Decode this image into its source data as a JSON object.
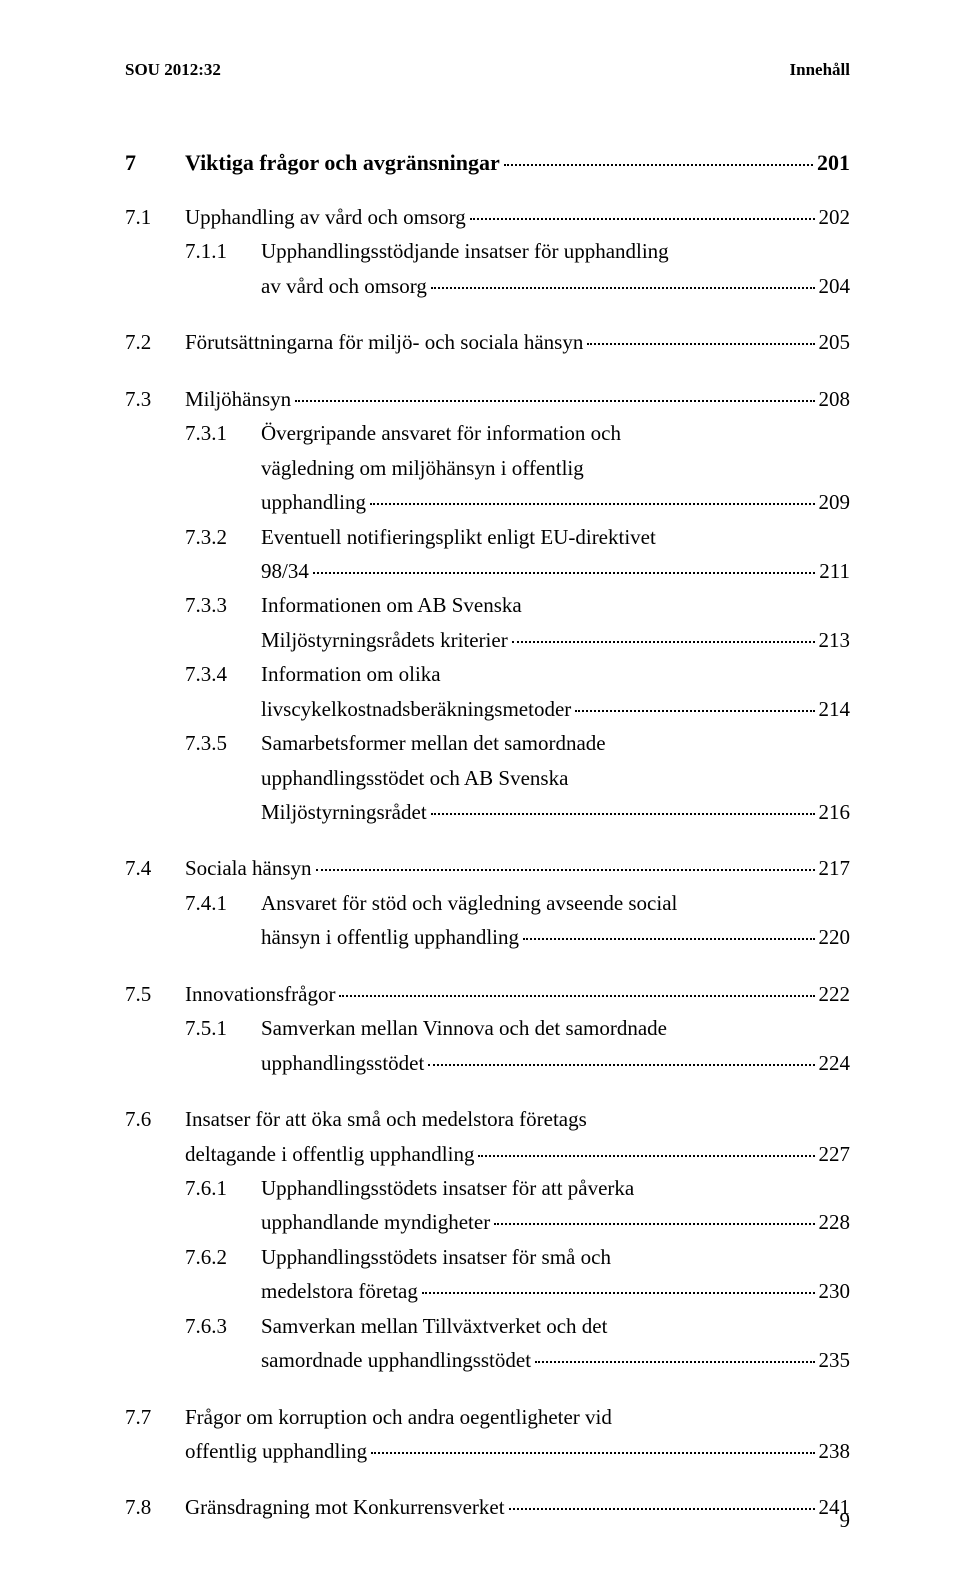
{
  "header": {
    "left": "SOU 2012:32",
    "right": "Innehåll"
  },
  "chapter": {
    "num": "7",
    "title": "Viktiga frågor och avgränsningar",
    "page": "201"
  },
  "sections": [
    {
      "num": "7.1",
      "title": "Upphandling av vård och omsorg",
      "page": "202",
      "subs": [
        {
          "num": "7.1.1",
          "lines": [
            "Upphandlingsstödjande insatser för upphandling",
            "av vård och omsorg"
          ],
          "page": "204"
        }
      ]
    },
    {
      "num": "7.2",
      "title": "Förutsättningarna för miljö- och sociala hänsyn",
      "page": "205",
      "subs": []
    },
    {
      "num": "7.3",
      "title": "Miljöhänsyn",
      "page": "208",
      "subs": [
        {
          "num": "7.3.1",
          "lines": [
            "Övergripande ansvaret för information och",
            "vägledning om miljöhänsyn i offentlig",
            "upphandling"
          ],
          "page": "209"
        },
        {
          "num": "7.3.2",
          "lines": [
            "Eventuell notifieringsplikt enligt EU-direktivet",
            "98/34"
          ],
          "page": "211"
        },
        {
          "num": "7.3.3",
          "lines": [
            "Informationen om AB Svenska",
            "Miljöstyrningsrådets kriterier"
          ],
          "page": "213"
        },
        {
          "num": "7.3.4",
          "lines": [
            "Information om olika",
            "livscykelkostnadsberäkningsmetoder"
          ],
          "page": "214"
        },
        {
          "num": "7.3.5",
          "lines": [
            "Samarbetsformer mellan det samordnade",
            "upphandlingsstödet och AB Svenska",
            "Miljöstyrningsrådet"
          ],
          "page": "216"
        }
      ]
    },
    {
      "num": "7.4",
      "title": "Sociala hänsyn",
      "page": "217",
      "subs": [
        {
          "num": "7.4.1",
          "lines": [
            "Ansvaret för stöd och vägledning avseende social",
            "hänsyn i offentlig upphandling"
          ],
          "page": "220"
        }
      ]
    },
    {
      "num": "7.5",
      "title": "Innovationsfrågor",
      "page": "222",
      "subs": [
        {
          "num": "7.5.1",
          "lines": [
            "Samverkan mellan Vinnova och det samordnade",
            "upphandlingsstödet"
          ],
          "page": "224"
        }
      ]
    },
    {
      "num": "7.6",
      "titleLines": [
        "Insatser för att öka små och medelstora företags",
        "deltagande i offentlig upphandling"
      ],
      "page": "227",
      "subs": [
        {
          "num": "7.6.1",
          "lines": [
            "Upphandlingsstödets insatser för att påverka",
            "upphandlande myndigheter"
          ],
          "page": "228"
        },
        {
          "num": "7.6.2",
          "lines": [
            "Upphandlingsstödets insatser för små och",
            "medelstora företag"
          ],
          "page": "230"
        },
        {
          "num": "7.6.3",
          "lines": [
            "Samverkan mellan Tillväxtverket och det",
            "samordnade upphandlingsstödet"
          ],
          "page": "235"
        }
      ]
    },
    {
      "num": "7.7",
      "titleLines": [
        "Frågor om korruption och andra oegentligheter vid",
        "offentlig upphandling"
      ],
      "page": "238",
      "subs": []
    },
    {
      "num": "7.8",
      "title": "Gränsdragning mot Konkurrensverket",
      "page": "241",
      "subs": []
    }
  ],
  "footerPage": "9",
  "colors": {
    "background": "#ffffff",
    "text": "#000000"
  },
  "typography": {
    "bodyFontSize": 21,
    "headerFontSize": 17,
    "chapterFontSize": 22,
    "fontFamily": "Georgia, Times New Roman, serif"
  }
}
